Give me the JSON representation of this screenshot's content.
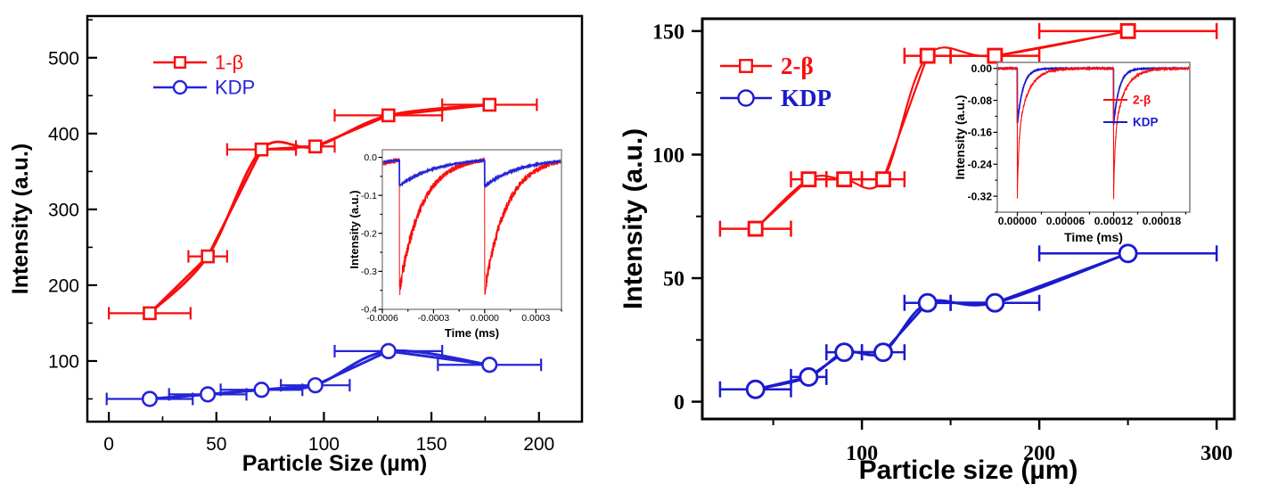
{
  "figure": {
    "background": "#ffffff",
    "frame_color": "#000000",
    "inset_frame_color": "#868686"
  },
  "chart_data": [
    {
      "type": "line",
      "panel": "left",
      "xlabel": "Particle Size (µm)",
      "ylabel": "Intensity (a.u.)",
      "xlim": [
        -10,
        220
      ],
      "ylim": [
        20,
        555
      ],
      "xticks": [
        0,
        50,
        100,
        150,
        200
      ],
      "xminor_step": 25,
      "yticks": [
        100,
        200,
        300,
        400,
        500
      ],
      "yminor_step": 50,
      "grid": false,
      "legend_position": "top-left-inside",
      "legend": [
        {
          "label": "1-β",
          "color": "#f90d0d",
          "marker": "square"
        },
        {
          "label": "KDP",
          "color": "#2424d8",
          "marker": "circle"
        }
      ],
      "series": [
        {
          "name": "1-β",
          "color": "#f90d0d",
          "marker": "square",
          "x": [
            19,
            46,
            71,
            96,
            130,
            177
          ],
          "y": [
            163,
            238,
            379,
            383,
            424,
            438
          ],
          "xerr": [
            19,
            9,
            16,
            9,
            25,
            22
          ]
        },
        {
          "name": "KDP",
          "color": "#2424d8",
          "marker": "circle",
          "x": [
            19,
            46,
            71,
            96,
            130,
            177
          ],
          "y": [
            50,
            56,
            62,
            68,
            113,
            95
          ],
          "xerr": [
            20,
            18,
            19,
            16,
            25,
            24
          ]
        }
      ],
      "inset": {
        "xlabel": "Time (ms)",
        "ylabel": "Intensity (a.u.)",
        "xlim": [
          -0.0006,
          0.00045
        ],
        "ylim": [
          -0.4,
          0.02
        ],
        "xticks": [
          -0.0006,
          -0.0003,
          0,
          0.0003
        ],
        "xtick_labels": [
          "-0.0006",
          "-0.0003",
          "0.0000",
          "0.0003"
        ],
        "xminor_step": 0.00015,
        "yticks": [
          0,
          -0.1,
          -0.2,
          -0.3,
          -0.4
        ],
        "ytick_labels": [
          "0.0",
          "-0.1",
          "-0.2",
          "-0.3",
          "-0.4"
        ],
        "yminor_step": 0.05,
        "pulses": {
          "start": -0.0005,
          "period": 0.0005
        },
        "curves": [
          {
            "name": "1-β",
            "color": "#f90d0d",
            "components": [
              {
                "depth": 0.35,
                "tau": 0.00013
              }
            ],
            "noise": 0.016,
            "width": 1.0
          },
          {
            "name": "KDP",
            "color": "#2424d8",
            "components": [
              {
                "depth": 0.075,
                "tau": 0.00022
              }
            ],
            "noise": 0.0012,
            "width": 1.8
          }
        ]
      }
    },
    {
      "type": "line",
      "panel": "right",
      "xlabel": "Particle size (µm)",
      "ylabel": "Intensity (a.u.)",
      "xlim": [
        10,
        310
      ],
      "ylim": [
        -7,
        155
      ],
      "xticks": [
        100,
        200,
        300
      ],
      "xminor_step": 50,
      "yticks": [
        0,
        50,
        100,
        150
      ],
      "yminor_step": 25,
      "grid": false,
      "legend_position": "top-left-inside",
      "legend": [
        {
          "label": "2-β",
          "color": "#f90d0d",
          "marker": "square"
        },
        {
          "label": "KDP",
          "color": "#1a1ace",
          "marker": "circle"
        }
      ],
      "series": [
        {
          "name": "2-β",
          "color": "#f90d0d",
          "marker": "square",
          "x": [
            40,
            70,
            90,
            112,
            137,
            175,
            250
          ],
          "y": [
            70,
            90,
            90,
            90,
            140,
            140,
            150
          ],
          "xerr": [
            20,
            10,
            10,
            12,
            13,
            25,
            50
          ]
        },
        {
          "name": "KDP",
          "color": "#1a1ace",
          "marker": "circle",
          "x": [
            40,
            70,
            90,
            112,
            137,
            175,
            250
          ],
          "y": [
            5,
            10,
            20,
            20,
            40,
            40,
            60
          ],
          "xerr": [
            20,
            10,
            10,
            12,
            13,
            25,
            50
          ]
        }
      ],
      "inset": {
        "xlabel": "Time (ms)",
        "ylabel": "Intensity (a.u.)",
        "xlim": [
          -2.5e-05,
          0.000215
        ],
        "ylim": [
          -0.36,
          0.015
        ],
        "xticks": [
          0,
          6e-05,
          0.00012,
          0.00018
        ],
        "xtick_labels": [
          "0.00000",
          "0.00006",
          "0.00012",
          "0.00018"
        ],
        "xminor_step": 3e-05,
        "yticks": [
          0,
          -0.08,
          -0.16,
          -0.24,
          -0.32
        ],
        "ytick_labels": [
          "0.00",
          "-0.08",
          "-0.16",
          "-0.24",
          "-0.32"
        ],
        "yminor_step": 0.04,
        "pulses": {
          "start": 0,
          "period": 0.00012
        },
        "legend": [
          {
            "label": "2-β",
            "color": "#f90d0d"
          },
          {
            "label": "KDP",
            "color": "#1a1ace"
          }
        ],
        "curves": [
          {
            "name": "KDP",
            "color": "#1a1ace",
            "components": [
              {
                "depth": 0.14,
                "tau": 7e-06
              }
            ],
            "noise": 0.0015,
            "width": 1.7
          },
          {
            "name": "2-β",
            "color": "#f90d0d",
            "components": [
              {
                "depth": 0.17,
                "tau": 1.3e-05
              },
              {
                "depth": 0.15,
                "tau": 1.8e-06
              }
            ],
            "noise": 0.008,
            "width": 1.1
          }
        ]
      }
    }
  ]
}
